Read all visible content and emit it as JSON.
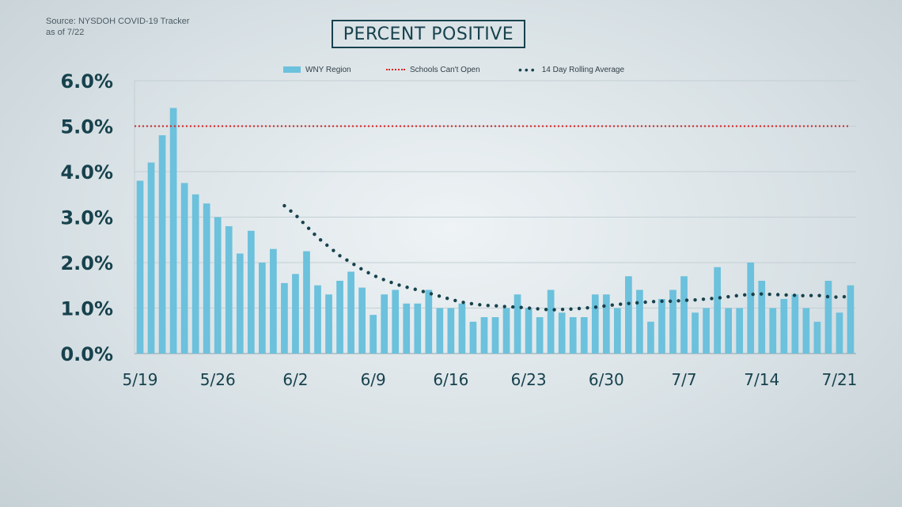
{
  "source_line1": "Source: NYSDOH COVID-19 Tracker",
  "source_line2": "as of 7/22",
  "colors": {
    "bar": "#6cc1dc",
    "threshold": "#d62020",
    "rolling": "#17424d",
    "text": "#17424d"
  },
  "chart_data": {
    "type": "bar",
    "title": "PERCENT POSITIVE",
    "xlabel": "",
    "ylabel": "",
    "ylim": [
      0,
      6
    ],
    "yticks": [
      "0.0%",
      "1.0%",
      "2.0%",
      "3.0%",
      "4.0%",
      "5.0%",
      "6.0%"
    ],
    "xtick_labels": [
      {
        "label": "5/19",
        "index": 0
      },
      {
        "label": "5/26",
        "index": 7
      },
      {
        "label": "6/2",
        "index": 14
      },
      {
        "label": "6/9",
        "index": 21
      },
      {
        "label": "6/16",
        "index": 28
      },
      {
        "label": "6/23",
        "index": 35
      },
      {
        "label": "6/30",
        "index": 42
      },
      {
        "label": "7/7",
        "index": 49
      },
      {
        "label": "7/14",
        "index": 56
      },
      {
        "label": "7/21",
        "index": 63
      }
    ],
    "grid": true,
    "legend_position": "top-center",
    "series": [
      {
        "name": "WNY Region",
        "type": "bar",
        "values": [
          3.8,
          4.2,
          4.8,
          5.4,
          3.75,
          3.5,
          3.3,
          3.0,
          2.8,
          2.2,
          2.7,
          2.0,
          2.3,
          1.55,
          1.75,
          2.25,
          1.5,
          1.3,
          1.6,
          1.8,
          1.45,
          0.85,
          1.3,
          1.4,
          1.1,
          1.1,
          1.4,
          1.0,
          1.0,
          1.1,
          0.7,
          0.8,
          0.8,
          1.0,
          1.3,
          1.0,
          0.8,
          1.4,
          0.9,
          0.8,
          0.8,
          1.3,
          1.3,
          1.0,
          1.7,
          1.4,
          0.7,
          1.2,
          1.4,
          1.7,
          0.9,
          1.0,
          1.9,
          1.0,
          1.0,
          2.0,
          1.6,
          1.0,
          1.2,
          1.3,
          1.0,
          0.7,
          1.6,
          0.9,
          1.5
        ]
      },
      {
        "name": "Schools Can't Open",
        "type": "threshold",
        "value": 5.0
      },
      {
        "name": "14 Day Rolling Average",
        "type": "dotted-line",
        "start_index": 13,
        "values": [
          3.25,
          3.05,
          2.8,
          2.55,
          2.35,
          2.15,
          2.0,
          1.85,
          1.72,
          1.62,
          1.53,
          1.46,
          1.4,
          1.33,
          1.26,
          1.19,
          1.13,
          1.09,
          1.06,
          1.05,
          1.03,
          1.02,
          1.0,
          0.98,
          0.96,
          0.97,
          0.98,
          1.0,
          1.02,
          1.05,
          1.08,
          1.1,
          1.12,
          1.14,
          1.15,
          1.15,
          1.17,
          1.18,
          1.2,
          1.22,
          1.25,
          1.28,
          1.3,
          1.31,
          1.3,
          1.29,
          1.28,
          1.27,
          1.28,
          1.25,
          1.24,
          1.26
        ]
      }
    ]
  }
}
